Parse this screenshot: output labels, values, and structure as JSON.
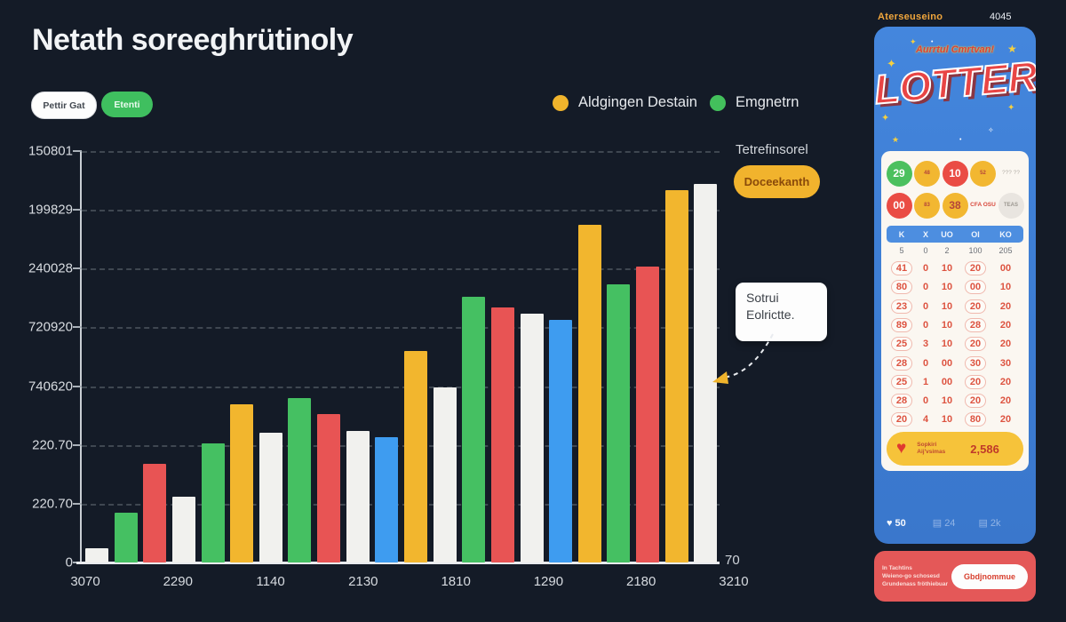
{
  "page": {
    "title": "Netath soreeghrütinoly"
  },
  "toolbar": {
    "light_button": "Pettir Gat",
    "green_button": "Etenti"
  },
  "legend": [
    {
      "label": "Aldgingen Destain",
      "color": "#f0b42c"
    },
    {
      "label": "Emgnetrn",
      "color": "#43c05c"
    }
  ],
  "annotation": {
    "label": "Tetrefinsorel",
    "button": "Doceekanth",
    "tooltip_line1": "Sotrui",
    "tooltip_line2": "Eolrictte."
  },
  "chart_data": {
    "type": "bar",
    "title": "Netath soreeghrütinoly",
    "xlabel": "",
    "ylabel": "",
    "ylim": [
      0,
      100
    ],
    "grid": true,
    "legend_position": "top-right",
    "y_ticks": [
      "150801",
      "199829",
      "240028",
      "720920",
      "740620",
      "220.70",
      "220.70",
      "0"
    ],
    "x_ticks": [
      "3070",
      "2290",
      "1140",
      "2130",
      "1810",
      "1290",
      "2180",
      "3210"
    ],
    "x_end_label": "70",
    "palette": {
      "white": "#f1f1ee",
      "green": "#45c062",
      "red": "#e85454",
      "yellow": "#f2b62e",
      "blue": "#3e9cf0"
    },
    "bars": [
      {
        "color": "white",
        "value": 3.5
      },
      {
        "color": "green",
        "value": 12
      },
      {
        "color": "red",
        "value": 24
      },
      {
        "color": "white",
        "value": 16
      },
      {
        "color": "green",
        "value": 29
      },
      {
        "color": "yellow",
        "value": 38.5
      },
      {
        "color": "white",
        "value": 31.5
      },
      {
        "color": "green",
        "value": 40
      },
      {
        "color": "red",
        "value": 36
      },
      {
        "color": "white",
        "value": 32
      },
      {
        "color": "blue",
        "value": 30.5
      },
      {
        "color": "yellow",
        "value": 51.5
      },
      {
        "color": "white",
        "value": 42.5
      },
      {
        "color": "green",
        "value": 64.5
      },
      {
        "color": "red",
        "value": 62
      },
      {
        "color": "white",
        "value": 60.5
      },
      {
        "color": "blue",
        "value": 59
      },
      {
        "color": "yellow",
        "value": 82
      },
      {
        "color": "green",
        "value": 67.5
      },
      {
        "color": "red",
        "value": 72
      },
      {
        "color": "yellow",
        "value": 90.5
      },
      {
        "color": "white",
        "value": 92
      }
    ]
  },
  "ticket": {
    "header_left": "Aterseuseino",
    "header_right": "4045",
    "script_text": "Aurrtul Cmrtvan!",
    "logo": "LOTTER",
    "balls_row1": [
      {
        "kind": "ball",
        "color": "green",
        "text": "29",
        "small": false
      },
      {
        "kind": "ball",
        "color": "yellow",
        "text": "48",
        "small": true
      },
      {
        "kind": "ball",
        "color": "red",
        "text": "10",
        "small": false
      },
      {
        "kind": "ball",
        "color": "yellow",
        "text": "52",
        "small": true
      },
      {
        "kind": "text-gray",
        "text": "??? ??"
      }
    ],
    "balls_row2": [
      {
        "kind": "ball",
        "color": "red",
        "text": "00",
        "small": false
      },
      {
        "kind": "ball",
        "color": "yellow",
        "text": "83",
        "small": true
      },
      {
        "kind": "ball",
        "color": "yellow",
        "text": "38",
        "small": false
      },
      {
        "kind": "text-red",
        "text": "CFA OSU"
      },
      {
        "kind": "ball",
        "color": "gray",
        "text": "TEAS",
        "small": true
      }
    ],
    "table_header": [
      "K",
      "X",
      "UO",
      "OI",
      "KO"
    ],
    "table_subrow": [
      "5",
      "0",
      "2",
      "100",
      "205"
    ],
    "table_rows": [
      [
        "41",
        "0",
        "10",
        "20",
        "00"
      ],
      [
        "80",
        "0",
        "10",
        "00",
        "10"
      ],
      [
        "23",
        "0",
        "10",
        "20",
        "20"
      ],
      [
        "89",
        "0",
        "10",
        "28",
        "20"
      ],
      [
        "25",
        "3",
        "10",
        "20",
        "20"
      ],
      [
        "28",
        "0",
        "00",
        "30",
        "30"
      ],
      [
        "25",
        "1",
        "00",
        "20",
        "20"
      ],
      [
        "28",
        "0",
        "10",
        "20",
        "20"
      ],
      [
        "20",
        "4",
        "10",
        "80",
        "20"
      ]
    ],
    "prize": {
      "line1": "Sopkiri",
      "line2": "Aij'vsimas",
      "value": "2,586"
    },
    "stats": [
      {
        "icon": "heart-icon",
        "glyph": "♥",
        "text": "50",
        "strong": true
      },
      {
        "icon": "note-icon",
        "glyph": "▤",
        "text": "24",
        "strong": false
      },
      {
        "icon": "note-icon",
        "glyph": "▤",
        "text": "2k",
        "strong": false
      }
    ],
    "footer": {
      "line1": "In Tachtins",
      "line2": "Weieno-go schosesd",
      "line3": "Grundenass fröthiebuar",
      "button": "Gbdjnommue"
    }
  }
}
